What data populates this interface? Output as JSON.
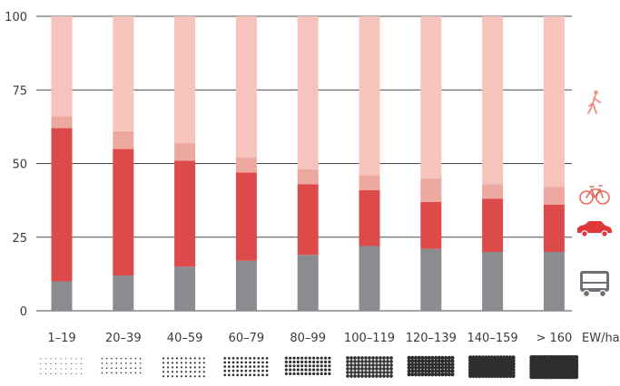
{
  "chart_data": {
    "type": "bar",
    "stacked": true,
    "categories": [
      "1–19",
      "20–39",
      "40–59",
      "60–79",
      "80–99",
      "100–119",
      "120–139",
      "140–159",
      "> 160"
    ],
    "x_unit_label": "EW/ha",
    "ylim": [
      0,
      100
    ],
    "yticks": [
      0,
      25,
      50,
      75,
      100
    ],
    "grid": true,
    "series": [
      {
        "icon": "bus-icon",
        "color": "#8a8c90",
        "values": [
          10,
          12,
          15,
          17,
          19,
          22,
          21,
          20,
          20
        ]
      },
      {
        "icon": "car-icon",
        "color": "#dd4a4a",
        "values": [
          52,
          43,
          36,
          30,
          24,
          19,
          16,
          18,
          16
        ]
      },
      {
        "icon": "bicycle-icon",
        "color": "#eda9a0",
        "values": [
          4,
          6,
          6,
          5,
          5,
          5,
          8,
          5,
          6
        ]
      },
      {
        "icon": "pedestrian-icon",
        "color": "#f6c4bd",
        "values": [
          34,
          39,
          43,
          48,
          52,
          54,
          55,
          57,
          58
        ]
      }
    ],
    "density_swatch_icons": [
      "density-swatch-1",
      "density-swatch-2",
      "density-swatch-3",
      "density-swatch-4",
      "density-swatch-5",
      "density-swatch-6",
      "density-swatch-7",
      "density-swatch-8",
      "density-swatch-9"
    ]
  }
}
